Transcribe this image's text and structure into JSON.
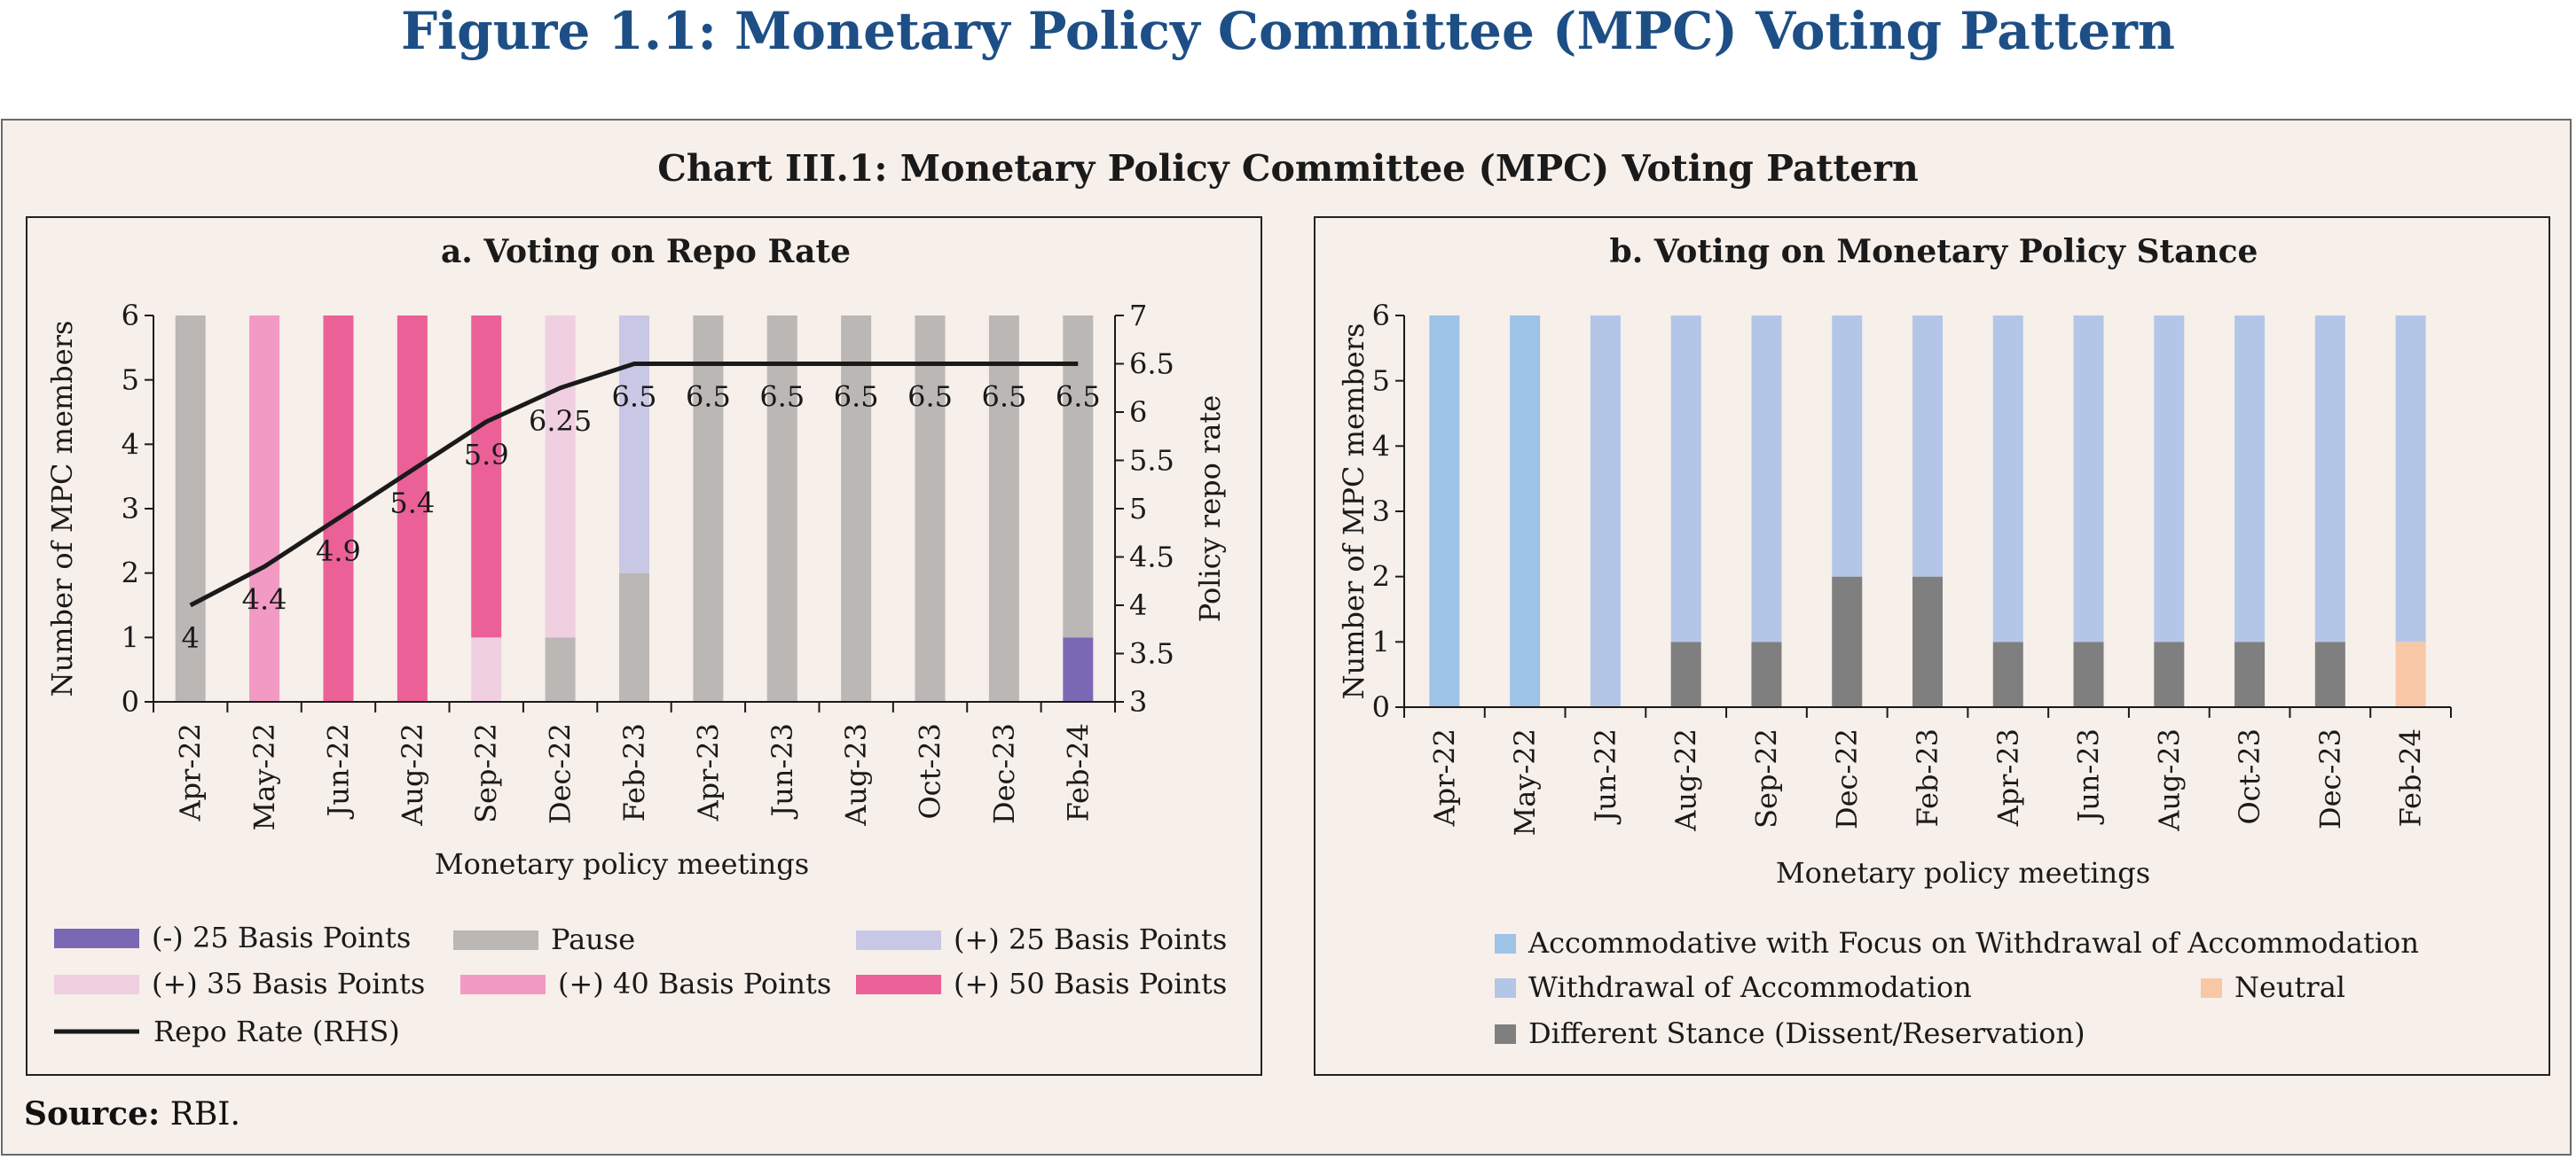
{
  "figure_title": "Figure 1.1: Monetary Policy Committee (MPC) Voting Pattern",
  "chart_title": "Chart III.1: Monetary Policy Committee (MPC) Voting Pattern",
  "source_label": "Source:",
  "source_text": "RBI.",
  "chart_data": [
    {
      "type": "bar",
      "stacked": true,
      "title": "a. Voting on Repo Rate",
      "xlabel": "Monetary policy meetings",
      "ylabel": "Number of MPC members",
      "ylabel_right": "Policy repo rate",
      "ylim": [
        0,
        6
      ],
      "ylim_right": [
        3,
        7
      ],
      "yticks": [
        "0",
        "1",
        "2",
        "3",
        "4",
        "5",
        "6"
      ],
      "yticks_right": [
        "3",
        "3.5",
        "4",
        "4.5",
        "5",
        "5.5",
        "6",
        "6.5",
        "7"
      ],
      "categories": [
        "Apr-22",
        "May-22",
        "Jun-22",
        "Aug-22",
        "Sep-22",
        "Dec-22",
        "Feb-23",
        "Apr-23",
        "Jun-23",
        "Aug-23",
        "Oct-23",
        "Dec-23",
        "Feb-24"
      ],
      "series": [
        {
          "name": "(-) 25 Basis Points",
          "color": "#7b68b5",
          "values": [
            0,
            0,
            0,
            0,
            0,
            0,
            0,
            0,
            0,
            0,
            0,
            0,
            1
          ]
        },
        {
          "name": "Pause",
          "color": "#bab7b4",
          "values": [
            6,
            0,
            0,
            0,
            0,
            1,
            2,
            6,
            6,
            6,
            6,
            6,
            5
          ]
        },
        {
          "name": "(+) 25 Basis Points",
          "color": "#c9c7e6",
          "values": [
            0,
            0,
            0,
            0,
            0,
            0,
            4,
            0,
            0,
            0,
            0,
            0,
            0
          ]
        },
        {
          "name": "(+) 35 Basis Points",
          "color": "#f0cfe1",
          "values": [
            0,
            0,
            0,
            0,
            1,
            5,
            0,
            0,
            0,
            0,
            0,
            0,
            0
          ]
        },
        {
          "name": "(+) 40 Basis Points",
          "color": "#f29ac4",
          "values": [
            0,
            6,
            0,
            0,
            0,
            0,
            0,
            0,
            0,
            0,
            0,
            0,
            0
          ]
        },
        {
          "name": "(+) 50 Basis Points",
          "color": "#ea6097",
          "values": [
            0,
            0,
            6,
            6,
            5,
            0,
            0,
            0,
            0,
            0,
            0,
            0,
            0
          ]
        }
      ],
      "line": {
        "name": "Repo Rate (RHS)",
        "color": "#1a1a1a",
        "values": [
          4,
          4.4,
          4.9,
          5.4,
          5.9,
          6.25,
          6.5,
          6.5,
          6.5,
          6.5,
          6.5,
          6.5,
          6.5
        ],
        "labels": [
          "4",
          "4.4",
          "4.9",
          "5.4",
          "5.9",
          "6.25",
          "6.5",
          "6.5",
          "6.5",
          "6.5",
          "6.5",
          "6.5",
          "6.5"
        ]
      },
      "legend": [
        {
          "name": "(-) 25 Basis Points",
          "color": "#7b68b5",
          "kind": "box"
        },
        {
          "name": "Pause",
          "color": "#bab7b4",
          "kind": "box"
        },
        {
          "name": "(+) 25 Basis Points",
          "color": "#c9c7e6",
          "kind": "box"
        },
        {
          "name": "(+) 35 Basis Points",
          "color": "#f0cfe1",
          "kind": "box"
        },
        {
          "name": "(+) 40 Basis Points",
          "color": "#f29ac4",
          "kind": "box"
        },
        {
          "name": "(+) 50 Basis Points",
          "color": "#ea6097",
          "kind": "box"
        },
        {
          "name": "Repo Rate (RHS)",
          "color": "#1a1a1a",
          "kind": "line"
        }
      ]
    },
    {
      "type": "bar",
      "stacked": true,
      "title": "b. Voting on Monetary Policy Stance",
      "xlabel": "Monetary policy meetings",
      "ylabel": "Number of MPC members",
      "ylim": [
        0,
        6
      ],
      "yticks": [
        "0",
        "1",
        "2",
        "3",
        "4",
        "5",
        "6"
      ],
      "categories": [
        "Apr-22",
        "May-22",
        "Jun-22",
        "Aug-22",
        "Sep-22",
        "Dec-22",
        "Feb-23",
        "Apr-23",
        "Jun-23",
        "Aug-23",
        "Oct-23",
        "Dec-23",
        "Feb-24"
      ],
      "series": [
        {
          "name": "Different Stance (Dissent/Reservation)",
          "color": "#7f7f7f",
          "values": [
            0,
            0,
            0,
            1,
            1,
            2,
            2,
            1,
            1,
            1,
            1,
            1,
            0
          ]
        },
        {
          "name": "Neutral",
          "color": "#f8c8a6",
          "values": [
            0,
            0,
            0,
            0,
            0,
            0,
            0,
            0,
            0,
            0,
            0,
            0,
            1
          ]
        },
        {
          "name": "Accommodative with Focus on Withdrawal of Accommodation",
          "color": "#9dc3e6",
          "values": [
            6,
            6,
            0,
            0,
            0,
            0,
            0,
            0,
            0,
            0,
            0,
            0,
            0
          ]
        },
        {
          "name": "Withdrawal of Accommodation",
          "color": "#b4c6e7",
          "values": [
            0,
            0,
            6,
            5,
            5,
            4,
            4,
            5,
            5,
            5,
            5,
            5,
            5
          ]
        }
      ],
      "legend": [
        {
          "name": "Accommodative with Focus on Withdrawal of Accommodation",
          "color": "#9dc3e6",
          "kind": "box"
        },
        {
          "name": "Withdrawal of Accommodation",
          "color": "#b4c6e7",
          "kind": "box"
        },
        {
          "name": "Neutral",
          "color": "#f8c8a6",
          "kind": "box"
        },
        {
          "name": "Different Stance (Dissent/Reservation)",
          "color": "#7f7f7f",
          "kind": "box"
        }
      ]
    }
  ]
}
